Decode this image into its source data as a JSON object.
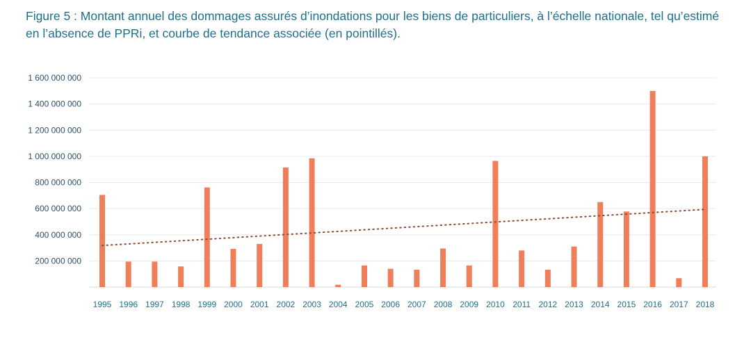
{
  "chart_data": {
    "type": "bar",
    "title": "Figure 5 : Montant annuel des dommages assurés d’inondations pour les biens de particuliers, à l’échelle nationale, tel qu’estimé en l’absence de PPRi, et courbe de tendance associée (en pointillés).",
    "xlabel": "",
    "ylabel": "",
    "ylim": [
      0,
      1600000000
    ],
    "yticks": [
      200000000,
      400000000,
      600000000,
      800000000,
      1000000000,
      1200000000,
      1400000000,
      1600000000
    ],
    "ytick_labels": [
      "200 000 000",
      "400 000 000",
      "600 000 000",
      "800 000 000",
      "1 000 000 000",
      "1 200 000 000",
      "1 400 000 000",
      "1 600 000 000"
    ],
    "grid": true,
    "categories": [
      "1995",
      "1996",
      "1997",
      "1998",
      "1999",
      "2000",
      "2001",
      "2002",
      "2003",
      "2004",
      "2005",
      "2006",
      "2007",
      "2008",
      "2009",
      "2010",
      "2011",
      "2012",
      "2013",
      "2014",
      "2015",
      "2016",
      "2017",
      "2018"
    ],
    "series": [
      {
        "values": [
          705000000,
          195000000,
          195000000,
          158000000,
          762000000,
          292000000,
          330000000,
          915000000,
          985000000,
          18000000,
          165000000,
          140000000,
          133000000,
          295000000,
          165000000,
          965000000,
          280000000,
          133000000,
          310000000,
          650000000,
          578000000,
          1500000000,
          68000000,
          1000000000
        ],
        "color": "#ef7f5a"
      }
    ],
    "trendline": {
      "style": "dotted",
      "color": "#8b4a34",
      "start_value": 318000000,
      "end_value": 594000000
    }
  }
}
